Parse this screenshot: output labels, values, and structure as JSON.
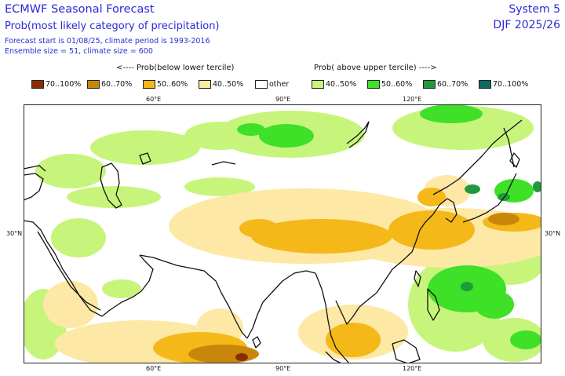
{
  "header": {
    "title": "ECMWF Seasonal Forecast",
    "subtitle": "Prob(most likely category of precipitation)",
    "info_line1": "Forecast start is 01/08/25, climate period is 1993-2016",
    "info_line2": "Ensemble size = 51, climate size = 600",
    "system": "System 5",
    "season": "DJF 2025/26"
  },
  "legend": {
    "below_label": "<---- Prob(below lower tercile)",
    "above_label": "Prob( above upper tercile) ---->",
    "items": [
      {
        "label": "70..100%",
        "color": "#8b2c00"
      },
      {
        "label": "60..70%",
        "color": "#c8860a"
      },
      {
        "label": "50..60%",
        "color": "#f5b819"
      },
      {
        "label": "40..50%",
        "color": "#fde8a6"
      },
      {
        "label": "other",
        "color": "#ffffff"
      },
      {
        "label": "40..50%",
        "color": "#c7f57c"
      },
      {
        "label": "50..60%",
        "color": "#3ee028"
      },
      {
        "label": "60..70%",
        "color": "#1f9b3d"
      },
      {
        "label": "70..100%",
        "color": "#0d6b62"
      }
    ]
  },
  "axes": {
    "top_lon": [
      "60°E",
      "90°E",
      "120°E"
    ],
    "bottom_lon": [
      "60°E",
      "90°E",
      "120°E"
    ],
    "left_lat": "30°N",
    "right_lat": "30°N"
  }
}
